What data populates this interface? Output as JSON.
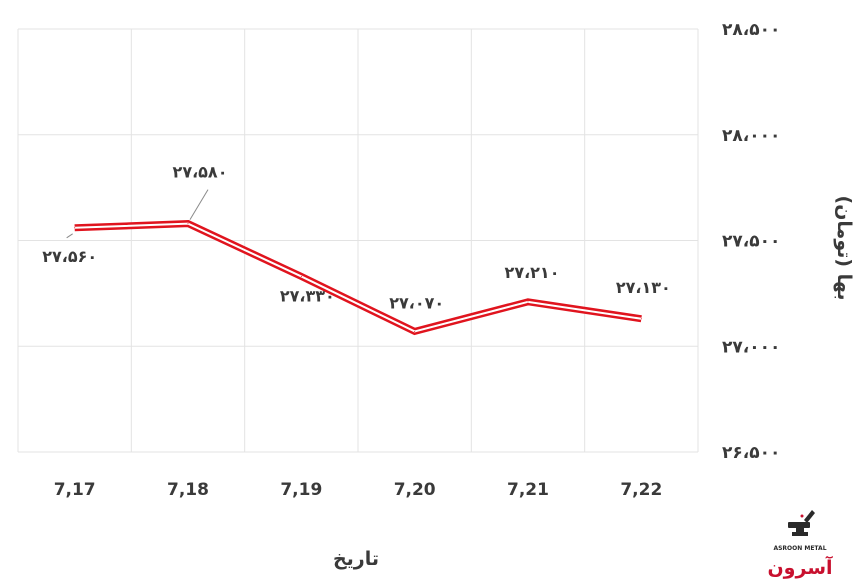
{
  "chart_data": {
    "type": "line",
    "categories": [
      "7,17",
      "7,18",
      "7,19",
      "7,20",
      "7,21",
      "7,22"
    ],
    "series": [
      {
        "values": [
          27560,
          27580,
          27330,
          27070,
          27210,
          27130
        ]
      }
    ],
    "data_labels": [
      "۲۷،۵۶۰",
      "۲۷،۵۸۰",
      "۲۷،۳۳۰",
      "۲۷،۰۷۰",
      "۲۷،۲۱۰",
      "۲۷،۱۳۰"
    ],
    "ylim": [
      26500,
      28500
    ],
    "yticks": [
      26500,
      27000,
      27500,
      28000,
      28500
    ],
    "ytick_labels": [
      "۲۶،۵۰۰",
      "۲۷،۰۰۰",
      "۲۷،۵۰۰",
      "۲۸،۰۰۰",
      "۲۸،۵۰۰"
    ],
    "xlabel": "تاریخ",
    "ylabel": "بها (تومان)",
    "y_axis_position": "right",
    "grid": true,
    "line_color": "#e0141e",
    "grid_color": "#e3e3e3",
    "text_color": "#3a3a3a"
  },
  "logo": {
    "text": "آسرون",
    "subtext": "ASROON METAL",
    "icon": "anvil-hammer-icon",
    "color": "#c8102e"
  }
}
